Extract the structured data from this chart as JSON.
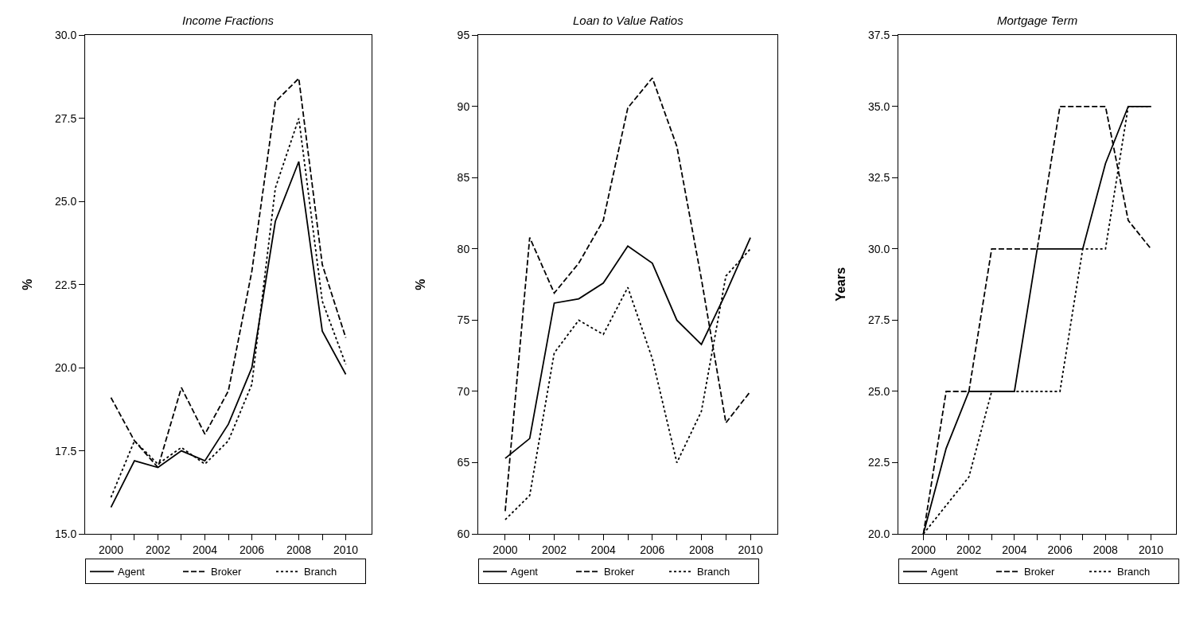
{
  "chart_data": [
    {
      "type": "line",
      "title": "Income Fractions",
      "ylabel": "%",
      "x": [
        2000,
        2001,
        2002,
        2003,
        2004,
        2005,
        2006,
        2007,
        2008,
        2009,
        2010
      ],
      "series": [
        {
          "name": "Agent",
          "color": "#000000",
          "line_style": "solid",
          "values": [
            15.8,
            17.2,
            17.0,
            17.5,
            17.2,
            18.3,
            20.0,
            24.4,
            26.2,
            21.1,
            19.8
          ]
        },
        {
          "name": "Broker",
          "color": "#000000",
          "line_style": "dashed",
          "values": [
            19.1,
            17.8,
            17.0,
            19.4,
            18.0,
            19.3,
            22.9,
            28.0,
            28.7,
            23.1,
            20.9
          ]
        },
        {
          "name": "Branch",
          "color": "#000000",
          "line_style": "dotted",
          "values": [
            16.1,
            17.8,
            17.1,
            17.6,
            17.1,
            17.8,
            19.5,
            25.4,
            27.5,
            22.0,
            20.1
          ]
        }
      ],
      "xlim": [
        1998.9,
        2011.1
      ],
      "xticks": [
        2000,
        {
          "value": 2001,
          "label": null
        },
        2002,
        {
          "value": 2003,
          "label": null
        },
        2004,
        {
          "value": 2005,
          "label": null
        },
        2006,
        {
          "value": 2007,
          "label": null
        },
        2008,
        {
          "value": 2009,
          "label": null
        },
        2010
      ],
      "ylim": [
        15,
        30
      ],
      "yticks": [
        {
          "value": 15,
          "label": "15.0"
        },
        {
          "value": 17.5,
          "label": "17.5"
        },
        {
          "value": 20,
          "label": "20.0"
        },
        {
          "value": 22.5,
          "label": "22.5"
        },
        {
          "value": 25,
          "label": "25.0"
        },
        {
          "value": 27.5,
          "label": "27.5"
        },
        {
          "value": 30,
          "label": "30.0"
        }
      ],
      "grid": false,
      "legend": "bottom"
    },
    {
      "type": "line",
      "title": "Loan to Value Ratios",
      "ylabel": "%",
      "x": [
        2000,
        2001,
        2002,
        2003,
        2004,
        2005,
        2006,
        2007,
        2008,
        2009,
        2010
      ],
      "series": [
        {
          "name": "Agent",
          "color": "#000000",
          "line_style": "solid",
          "values": [
            65.3,
            66.7,
            76.2,
            76.5,
            77.6,
            80.2,
            79.0,
            75.0,
            73.3,
            76.9,
            80.8
          ]
        },
        {
          "name": "Broker",
          "color": "#000000",
          "line_style": "dashed",
          "values": [
            61.6,
            80.8,
            76.9,
            79.0,
            82.0,
            89.9,
            92.0,
            87.2,
            77.9,
            67.8,
            70.0
          ]
        },
        {
          "name": "Branch",
          "color": "#000000",
          "line_style": "dotted",
          "values": [
            61.0,
            62.7,
            72.7,
            75.0,
            74.0,
            77.3,
            72.3,
            65.0,
            68.6,
            78.1,
            80.0
          ]
        }
      ],
      "xlim": [
        1998.9,
        2011.1
      ],
      "xticks": [
        2000,
        {
          "value": 2001,
          "label": null
        },
        2002,
        {
          "value": 2003,
          "label": null
        },
        2004,
        {
          "value": 2005,
          "label": null
        },
        2006,
        {
          "value": 2007,
          "label": null
        },
        2008,
        {
          "value": 2009,
          "label": null
        },
        2010
      ],
      "ylim": [
        60,
        95
      ],
      "yticks": [
        60,
        65,
        70,
        75,
        80,
        85,
        90,
        95
      ],
      "grid": false,
      "legend": "bottom"
    },
    {
      "type": "line",
      "title": "Mortgage Term",
      "ylabel": "Years",
      "x": [
        2000,
        2001,
        2002,
        2003,
        2004,
        2005,
        2006,
        2007,
        2008,
        2009,
        2010
      ],
      "series": [
        {
          "name": "Agent",
          "color": "#000000",
          "line_style": "solid",
          "values": [
            20,
            23,
            25,
            25,
            25,
            30,
            30,
            30,
            33,
            35,
            35
          ]
        },
        {
          "name": "Broker",
          "color": "#000000",
          "line_style": "dashed",
          "values": [
            20,
            25,
            25,
            30,
            30,
            30,
            35,
            35,
            35,
            31,
            30
          ]
        },
        {
          "name": "Branch",
          "color": "#000000",
          "line_style": "dotted",
          "values": [
            20,
            21,
            22,
            25,
            25,
            25,
            25,
            30,
            30,
            35,
            35
          ]
        }
      ],
      "xlim": [
        1998.9,
        2011.1
      ],
      "xticks": [
        2000,
        {
          "value": 2001,
          "label": null
        },
        2002,
        {
          "value": 2003,
          "label": null
        },
        2004,
        {
          "value": 2005,
          "label": null
        },
        2006,
        {
          "value": 2007,
          "label": null
        },
        2008,
        {
          "value": 2009,
          "label": null
        },
        2010
      ],
      "ylim": [
        20,
        37.5
      ],
      "yticks": [
        {
          "value": 20,
          "label": "20.0"
        },
        {
          "value": 22.5,
          "label": "22.5"
        },
        {
          "value": 25,
          "label": "25.0"
        },
        {
          "value": 27.5,
          "label": "27.5"
        },
        {
          "value": 30,
          "label": "30.0"
        },
        {
          "value": 32.5,
          "label": "32.5"
        },
        {
          "value": 35,
          "label": "35.0"
        },
        {
          "value": 37.5,
          "label": "37.5"
        }
      ],
      "grid": false,
      "legend": "bottom"
    }
  ]
}
